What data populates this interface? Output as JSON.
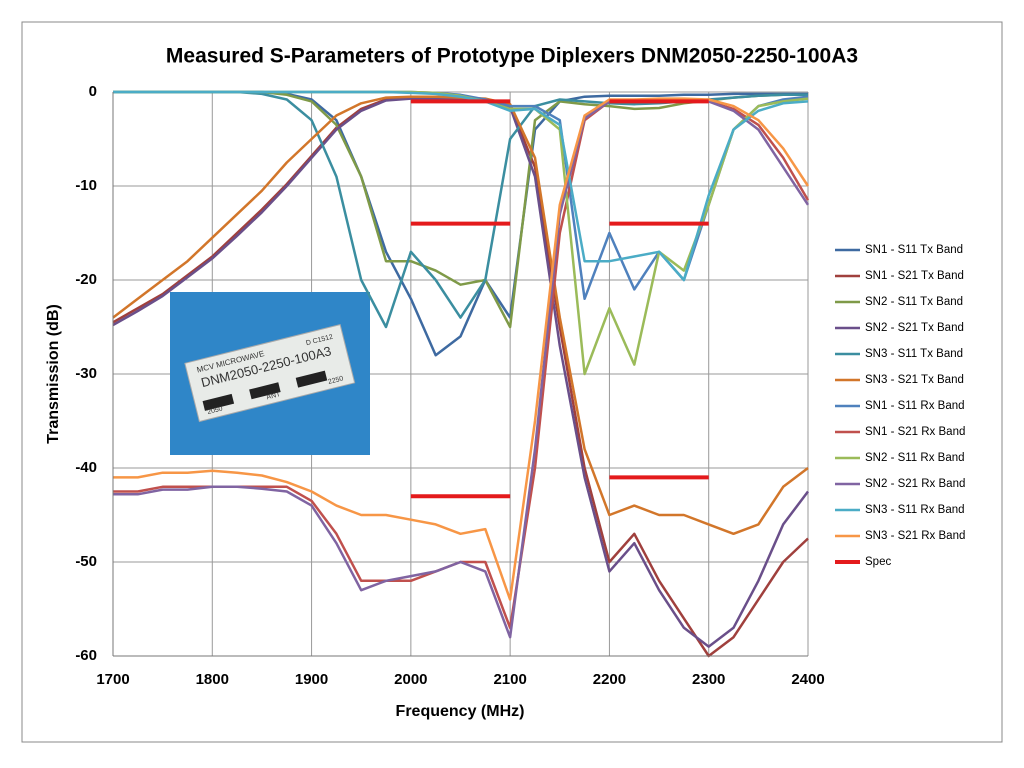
{
  "chart_data": {
    "type": "line",
    "title": "Measured S-Parameters of Prototype Diplexers DNM2050-2250-100A3",
    "x_label": "Frequency (MHz)",
    "y_label": "Transmission (dB)",
    "xlim": [
      1700,
      2400
    ],
    "xticks": [
      1700,
      1800,
      1900,
      2000,
      2100,
      2200,
      2300,
      2400
    ],
    "ylim": [
      -60,
      0
    ],
    "yticks": [
      0,
      -10,
      -20,
      -30,
      -40,
      -50,
      -60
    ],
    "grid": true,
    "legend": "right",
    "x": [
      1700,
      1725,
      1750,
      1775,
      1800,
      1825,
      1850,
      1875,
      1900,
      1925,
      1950,
      1975,
      2000,
      2025,
      2050,
      2075,
      2100,
      2125,
      2150,
      2175,
      2200,
      2225,
      2250,
      2275,
      2300,
      2325,
      2350,
      2375,
      2400
    ],
    "series": [
      {
        "name": "SN1 - S11 Tx Band",
        "color": "#3e6aa1",
        "values": [
          0,
          0,
          0,
          0,
          0,
          0,
          0,
          -0.2,
          -0.8,
          -3,
          -9,
          -17,
          -22,
          -28,
          -26,
          -20,
          -24,
          -4,
          -1,
          -0.5,
          -0.4,
          -0.4,
          -0.4,
          -0.3,
          -0.3,
          -0.2,
          -0.2,
          -0.2,
          -0.2
        ]
      },
      {
        "name": "SN1 - S21 Tx Band",
        "color": "#a0403d",
        "values": [
          -24.5,
          -23,
          -21.5,
          -19.5,
          -17.5,
          -15,
          -12.5,
          -9.8,
          -6.8,
          -3.8,
          -1.8,
          -0.8,
          -0.6,
          -0.6,
          -0.7,
          -0.8,
          -1.5,
          -8,
          -25,
          -40,
          -50,
          -47,
          -52,
          -56,
          -60,
          -58,
          -54,
          -50,
          -47.5
        ]
      },
      {
        "name": "SN2 - S11 Tx Band",
        "color": "#7f9a48",
        "values": [
          0,
          0,
          0,
          0,
          0,
          0,
          0,
          -0.3,
          -1,
          -3.5,
          -9,
          -18,
          -18,
          -19,
          -20.5,
          -20,
          -25,
          -3,
          -1,
          -1.3,
          -1.5,
          -1.8,
          -1.7,
          -1.2,
          -0.9,
          -0.6,
          -0.4,
          -0.3,
          -0.3
        ]
      },
      {
        "name": "SN2 - S21 Tx Band",
        "color": "#6a4f8a",
        "values": [
          -24.8,
          -23.3,
          -21.7,
          -19.7,
          -17.7,
          -15.3,
          -12.8,
          -10,
          -7,
          -4,
          -2,
          -0.9,
          -0.7,
          -0.7,
          -0.8,
          -0.9,
          -1.6,
          -9,
          -27,
          -41,
          -51,
          -48,
          -53,
          -57,
          -59,
          -57,
          -52,
          -46,
          -42.5
        ]
      },
      {
        "name": "SN3 - S11 Tx Band",
        "color": "#3b8ea0",
        "values": [
          0,
          0,
          0,
          0,
          0,
          0,
          -0.2,
          -0.8,
          -3,
          -9,
          -20,
          -25,
          -17,
          -20,
          -24,
          -20,
          -5,
          -1.5,
          -0.8,
          -1,
          -1.2,
          -1.3,
          -1.2,
          -1,
          -0.8,
          -0.6,
          -0.4,
          -0.3,
          -0.3
        ]
      },
      {
        "name": "SN3 - S21 Tx Band",
        "color": "#d2762a",
        "values": [
          -24,
          -22,
          -20,
          -18,
          -15.5,
          -13,
          -10.5,
          -7.5,
          -5,
          -2.5,
          -1.2,
          -0.6,
          -0.5,
          -0.5,
          -0.6,
          -0.7,
          -1.3,
          -7,
          -24,
          -38,
          -45,
          -44,
          -45,
          -45,
          -46,
          -47,
          -46,
          -42,
          -40
        ]
      },
      {
        "name": "SN1 - S11 Rx Band",
        "color": "#4f81bd",
        "values": [
          0,
          0,
          0,
          0,
          0,
          0,
          0,
          0,
          0,
          0,
          0,
          0,
          0,
          -0.1,
          -0.3,
          -0.8,
          -1.5,
          -1.5,
          -3,
          -22,
          -15,
          -21,
          -17,
          -20,
          -12,
          -4,
          -1.5,
          -0.8,
          -0.5
        ]
      },
      {
        "name": "SN1 - S21 Rx Band",
        "color": "#c0504d",
        "values": [
          -42.5,
          -42.5,
          -42,
          -42,
          -42,
          -42,
          -42,
          -42,
          -43.5,
          -47,
          -52,
          -52,
          -52,
          -51,
          -50,
          -50,
          -57,
          -40,
          -15,
          -3,
          -1,
          -0.9,
          -0.9,
          -0.9,
          -1,
          -1.8,
          -3.5,
          -7,
          -11.5
        ]
      },
      {
        "name": "SN2 - S11 Rx Band",
        "color": "#9bbb59",
        "values": [
          0,
          0,
          0,
          0,
          0,
          0,
          0,
          0,
          0,
          0,
          0,
          0,
          0,
          -0.1,
          -0.4,
          -1,
          -1.8,
          -1.8,
          -4,
          -30,
          -23,
          -29,
          -17,
          -19,
          -12,
          -4,
          -1.5,
          -1,
          -0.7
        ]
      },
      {
        "name": "SN2 - S21 Rx Band",
        "color": "#8064a2",
        "values": [
          -42.8,
          -42.8,
          -42.3,
          -42.3,
          -42,
          -42,
          -42.2,
          -42.5,
          -44,
          -48,
          -53,
          -52,
          -51.5,
          -51,
          -50,
          -51,
          -58,
          -38,
          -13,
          -2.8,
          -1,
          -0.9,
          -0.9,
          -0.9,
          -1,
          -2,
          -4,
          -8,
          -12
        ]
      },
      {
        "name": "SN3 - S11 Rx Band",
        "color": "#4bacc6",
        "values": [
          0,
          0,
          0,
          0,
          0,
          0,
          0,
          0,
          0,
          0,
          0,
          0,
          -0.1,
          -0.2,
          -0.5,
          -1,
          -2,
          -1.8,
          -3.5,
          -18,
          -18,
          -17.5,
          -17,
          -20,
          -11,
          -4,
          -2,
          -1.2,
          -1
        ]
      },
      {
        "name": "SN3 - S21 Rx Band",
        "color": "#f79646",
        "values": [
          -41,
          -41,
          -40.5,
          -40.5,
          -40.3,
          -40.5,
          -40.8,
          -41.5,
          -42.5,
          -44,
          -45,
          -45,
          -45.5,
          -46,
          -47,
          -46.5,
          -54,
          -35,
          -12,
          -2.5,
          -0.8,
          -0.8,
          -0.7,
          -0.7,
          -0.8,
          -1.5,
          -3,
          -6,
          -10
        ]
      }
    ],
    "spec": {
      "name": "Spec",
      "color": "#e41a1c",
      "segments": [
        {
          "x": [
            2000,
            2100
          ],
          "y": [
            -1,
            -1
          ]
        },
        {
          "x": [
            2000,
            2100
          ],
          "y": [
            -14,
            -14
          ]
        },
        {
          "x": [
            2000,
            2100
          ],
          "y": [
            -43,
            -43
          ]
        },
        {
          "x": [
            2200,
            2300
          ],
          "y": [
            -1,
            -1
          ]
        },
        {
          "x": [
            2200,
            2300
          ],
          "y": [
            -14,
            -14
          ]
        },
        {
          "x": [
            2200,
            2300
          ],
          "y": [
            -41,
            -41
          ]
        }
      ]
    },
    "photo": {
      "labels": [
        "MCV MICROWAVE",
        "D C1512",
        "DNM2050-2250-100A3",
        "2050",
        "ANT",
        "2250"
      ]
    }
  }
}
